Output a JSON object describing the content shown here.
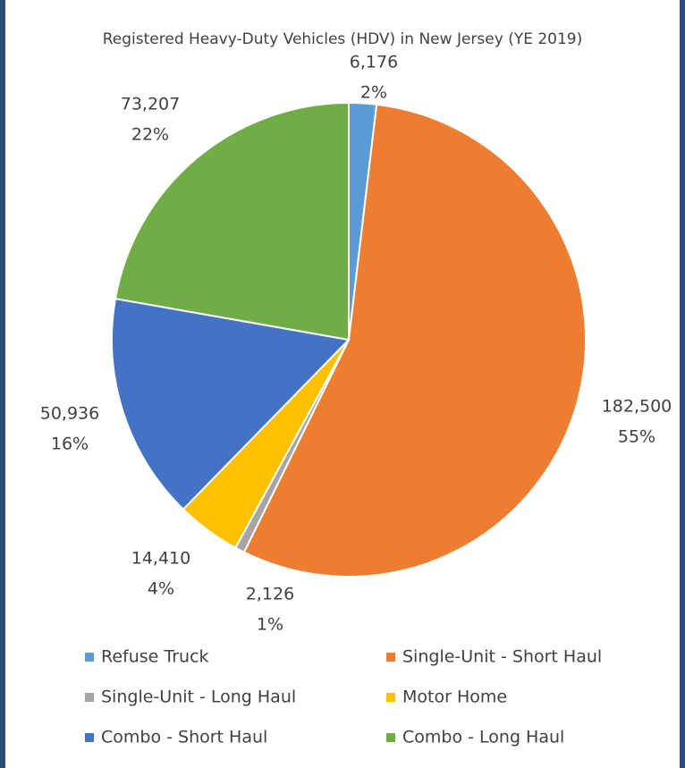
{
  "chart_data": {
    "type": "pie",
    "title": "Registered Heavy-Duty Vehicles (HDV) in New Jersey (YE 2019)",
    "categories": [
      "Refuse Truck",
      "Single-Unit - Short Haul",
      "Single-Unit - Long Haul",
      "Motor Home",
      "Combo - Short Haul",
      "Combo - Long Haul"
    ],
    "values": [
      6176,
      182500,
      2126,
      14410,
      50936,
      73207
    ],
    "value_labels": [
      "6,176",
      "182,500",
      "2,126",
      "14,410",
      "50,936",
      "73,207"
    ],
    "percent_labels": [
      "2%",
      "55%",
      "1%",
      "4%",
      "16%",
      "22%"
    ],
    "colors": [
      "#5b9bd5",
      "#ed7d31",
      "#a5a5a5",
      "#ffc000",
      "#4472c4",
      "#70ad47"
    ],
    "legend": "bottom"
  }
}
